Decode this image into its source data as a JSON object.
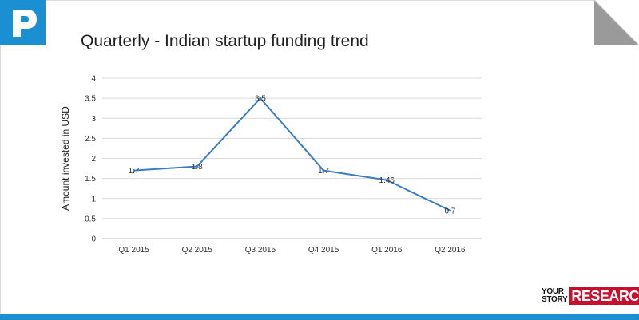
{
  "slide": {
    "title": "Quarterly - Indian startup funding trend"
  },
  "brand": {
    "small_line1": "YOUR",
    "small_line2": "STORY",
    "big": "RESEARCH",
    "accent_color": "#c8102e"
  },
  "logo": {
    "icon": "p-logo-icon",
    "color": "#1a8fd1"
  },
  "chart_data": {
    "type": "line",
    "title": "",
    "xlabel": "",
    "ylabel": "Amount invested in USD",
    "categories": [
      "Q1 2015",
      "Q2 2015",
      "Q3 2015",
      "Q4 2015",
      "Q1 2016",
      "Q2 2016"
    ],
    "series": [
      {
        "values": [
          1.7,
          1.8,
          3.5,
          1.7,
          1.46,
          0.7
        ],
        "labels": [
          "1.7",
          "1.8",
          "3.5",
          "1.7",
          "1.46",
          "0.7"
        ],
        "color": "#3b7dc4"
      }
    ],
    "ylim": [
      0,
      4
    ],
    "yticks": [
      "0",
      "0.5",
      "1",
      "1.5",
      "2",
      "2.5",
      "3",
      "3.5",
      "4"
    ],
    "ytick_values": [
      0,
      0.5,
      1,
      1.5,
      2,
      2.5,
      3,
      3.5,
      4
    ],
    "grid": true,
    "legend": "none"
  }
}
